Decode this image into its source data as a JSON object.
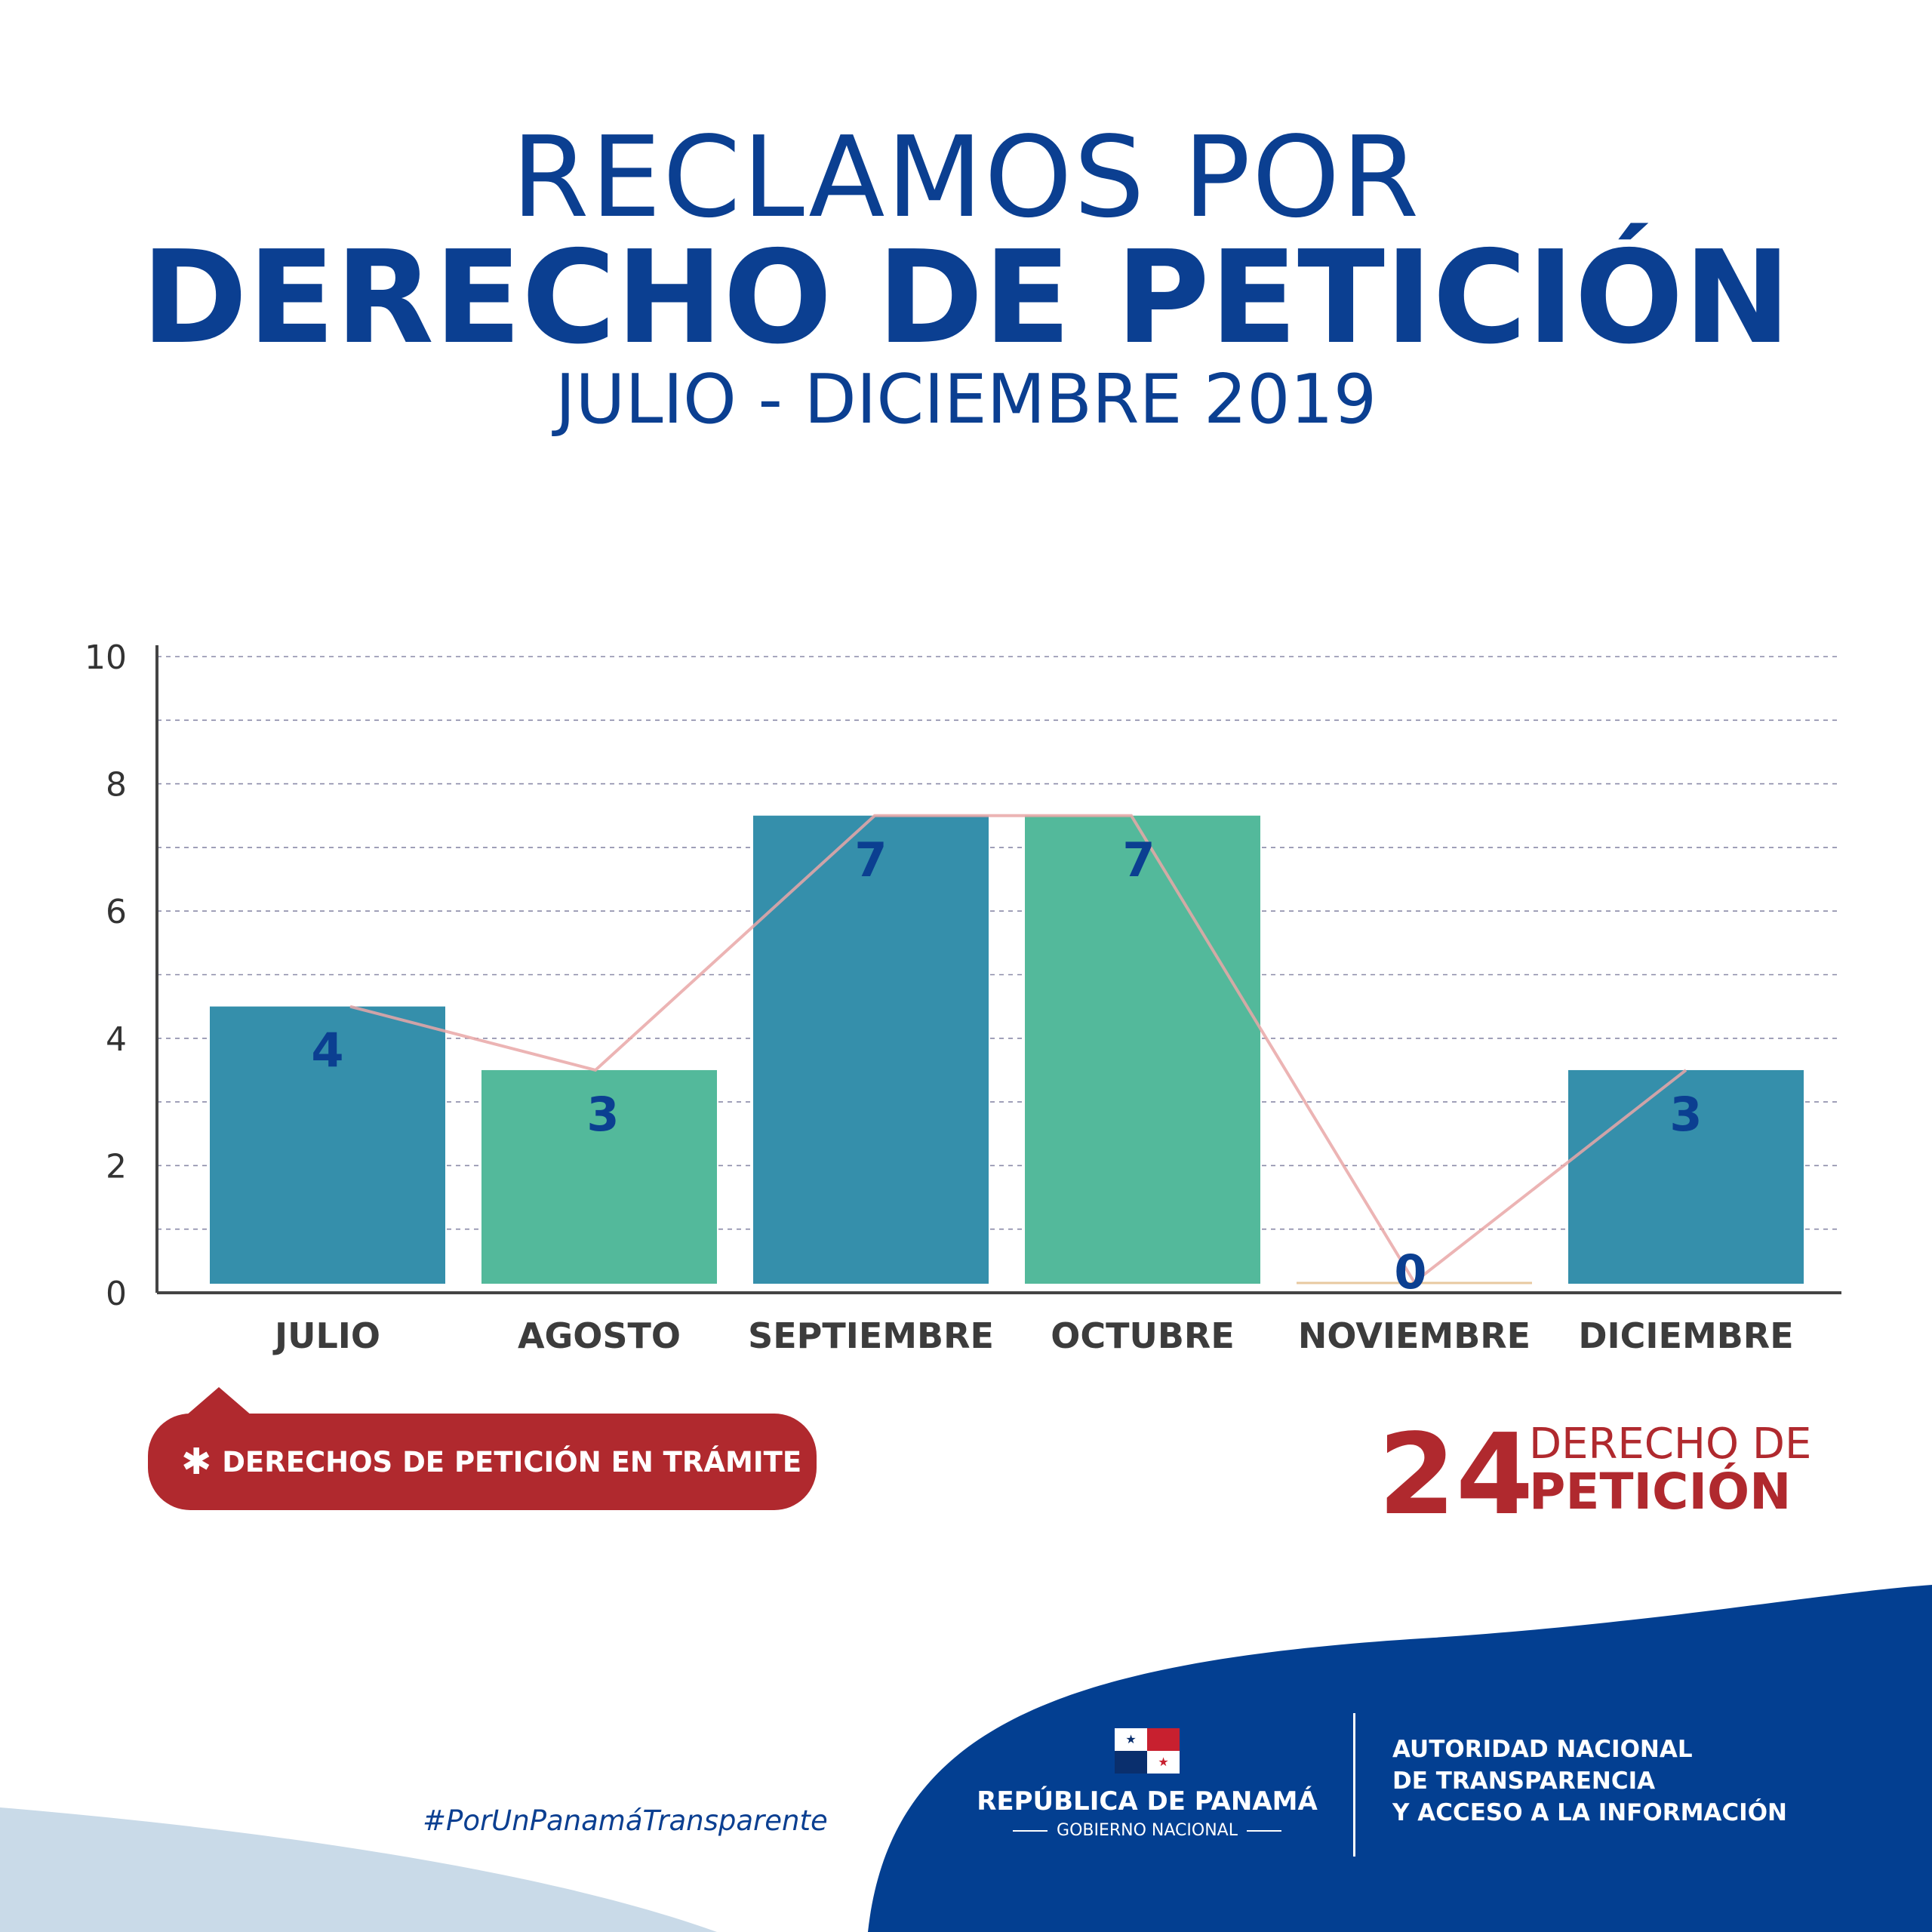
{
  "header": {
    "line1": "RECLAMOS POR",
    "line2": "DERECHO DE PETICIÓN",
    "line3": "JULIO - DICIEMBRE 2019"
  },
  "chart_data": {
    "type": "bar",
    "categories": [
      "JULIO",
      "AGOSTO",
      "SEPTIEMBRE",
      "OCTUBRE",
      "NOVIEMBRE",
      "DICIEMBRE"
    ],
    "values": [
      4,
      3,
      7,
      7,
      0,
      3
    ],
    "data_labels": [
      "4",
      "3",
      "7",
      "7",
      "0",
      "3"
    ],
    "bar_colors": [
      "#358fab",
      "#53b99b",
      "#358fab",
      "#53b99b",
      "#53b99b",
      "#358fab"
    ],
    "ylim": [
      0,
      10
    ],
    "yticks": [
      0,
      2,
      4,
      6,
      8,
      10
    ],
    "grid": true,
    "overlay_line": true,
    "line_color": "#e9a7a7",
    "label_color": "#0b3f91"
  },
  "callout": {
    "icon": "asterisk-icon",
    "text": "DERECHOS DE PETICIÓN EN TRÁMITE"
  },
  "total": {
    "number": "24",
    "line1": "DERECHO DE",
    "line2": "PETICIÓN"
  },
  "footer": {
    "hashtag": "#PorUnPanamáTransparente",
    "republic": "REPÚBLICA DE PANAMÁ",
    "government": "GOBIERNO NACIONAL",
    "authority": [
      "AUTORIDAD NACIONAL",
      "DE TRANSPARENCIA",
      "Y ACCESO A LA INFORMACIÓN"
    ]
  },
  "colors": {
    "brand_blue": "#0b3f91",
    "brand_red": "#b0292e",
    "light_blue": "#c9dae8"
  }
}
